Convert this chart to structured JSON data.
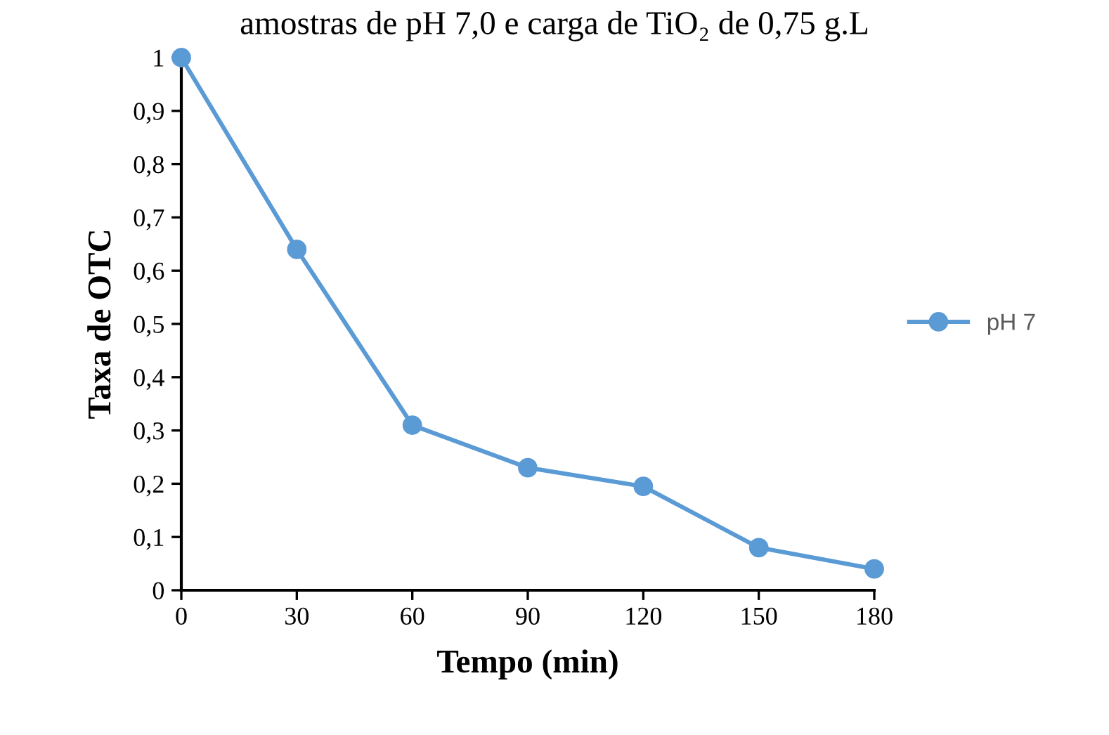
{
  "chart_data": {
    "type": "line",
    "title": "amostras de pH 7,0 e carga de TiO₂ de 0,75 g.L",
    "xlabel": "Tempo (min)",
    "ylabel": "Taxa de OTC",
    "x": [
      0,
      30,
      60,
      90,
      120,
      150,
      180
    ],
    "series": [
      {
        "name": "pH 7",
        "color": "#5b9bd5",
        "values": [
          1.0,
          0.64,
          0.31,
          0.23,
          0.195,
          0.08,
          0.04
        ]
      }
    ],
    "xlim": [
      0,
      180
    ],
    "xticks": [
      0,
      30,
      60,
      90,
      120,
      150,
      180
    ],
    "ylim": [
      0,
      1
    ],
    "yticks": [
      0,
      {
        "value": 0.1,
        "label": "0,1"
      },
      {
        "value": 0.2,
        "label": "0,2"
      },
      {
        "value": 0.3,
        "label": "0,3"
      },
      {
        "value": 0.4,
        "label": "0,4"
      },
      {
        "value": 0.5,
        "label": "0,5"
      },
      {
        "value": 0.6,
        "label": "0,6"
      },
      {
        "value": 0.7,
        "label": "0,7"
      },
      {
        "value": 0.8,
        "label": "0,8"
      },
      {
        "value": 0.9,
        "label": "0,9"
      },
      1
    ],
    "marker": "circle",
    "line_style": "solid",
    "legend": "right",
    "grid": false
  }
}
